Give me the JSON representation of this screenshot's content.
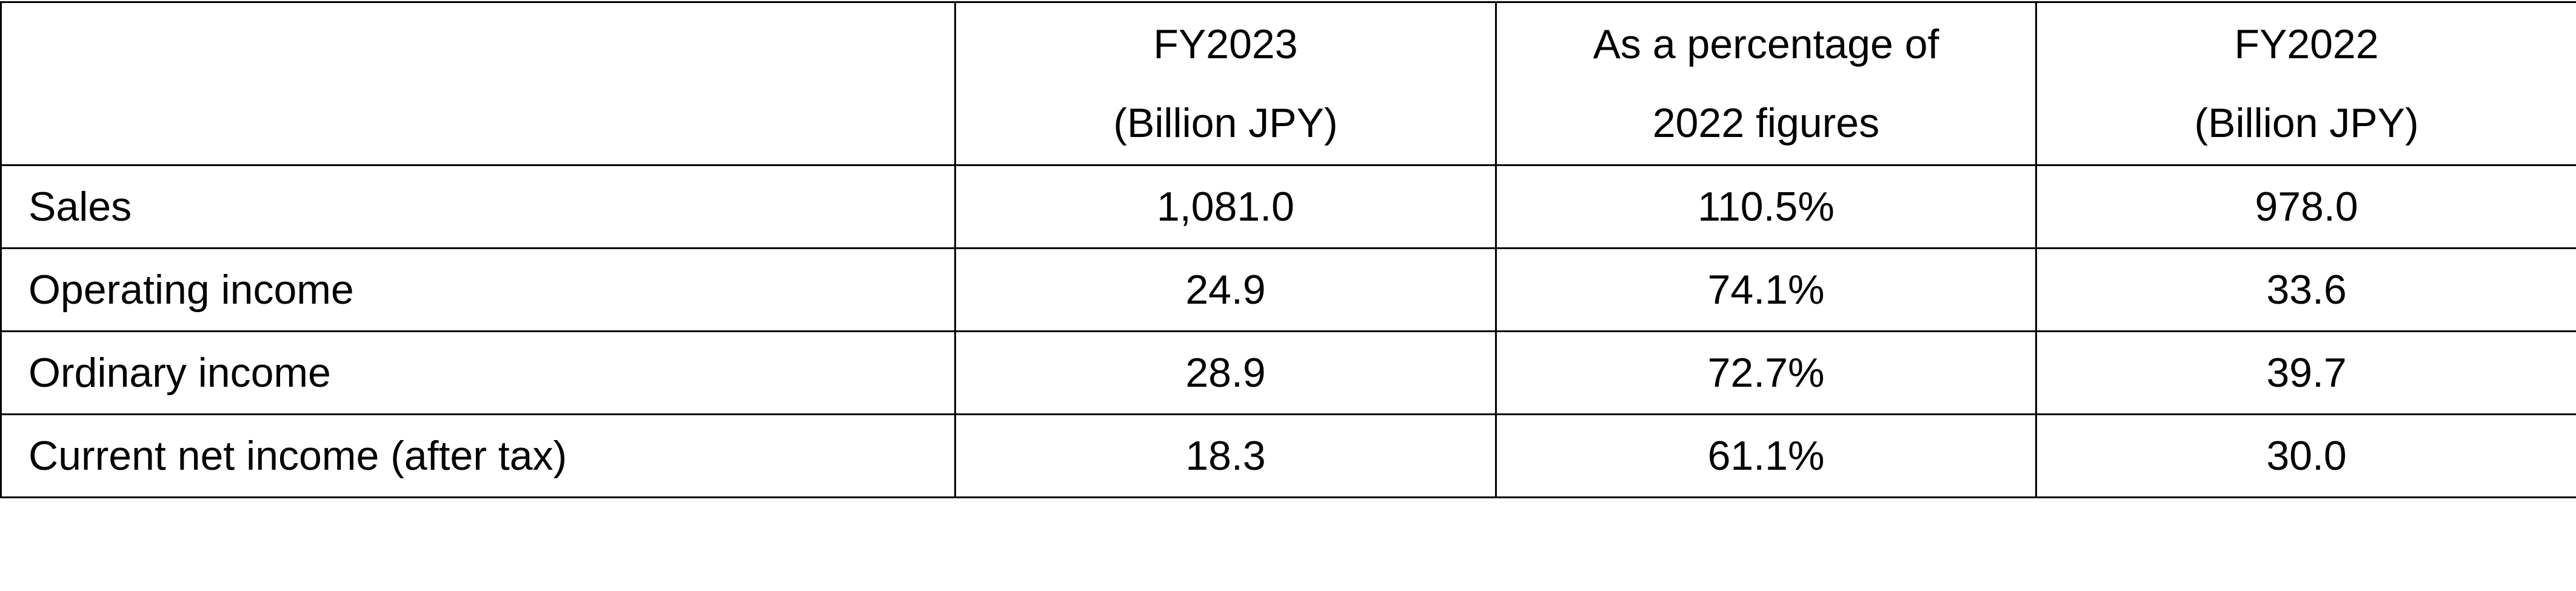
{
  "table": {
    "columns": [
      [
        "FY2023",
        "(Billion JPY)"
      ],
      [
        "As a percentage of",
        "2022 figures"
      ],
      [
        "FY2022",
        "(Billion JPY)"
      ]
    ],
    "rows": [
      [
        "Sales",
        "1,081.0",
        "110.5%",
        "978.0"
      ],
      [
        "Operating income",
        "24.9",
        "74.1%",
        "33.6"
      ],
      [
        "Ordinary income",
        "28.9",
        "72.7%",
        "39.7"
      ],
      [
        "Current net income (after tax)",
        "18.3",
        "61.1%",
        "30.0"
      ]
    ]
  }
}
